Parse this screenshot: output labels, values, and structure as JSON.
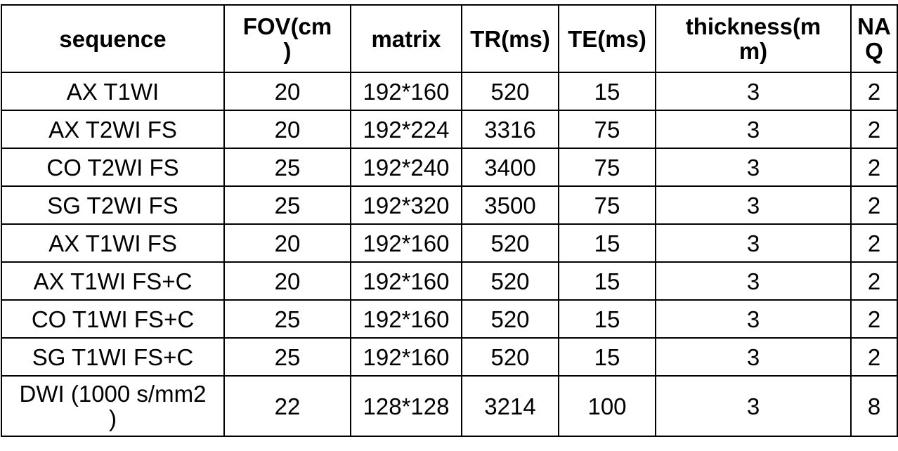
{
  "headers": [
    {
      "lines": [
        "sequence"
      ]
    },
    {
      "lines": [
        "FOV(cm",
        ")"
      ]
    },
    {
      "lines": [
        "matrix"
      ]
    },
    {
      "lines": [
        "TR(ms)"
      ]
    },
    {
      "lines": [
        "TE(ms)"
      ]
    },
    {
      "lines": [
        "thickness(m",
        "m)"
      ]
    },
    {
      "lines": [
        "NA",
        "Q"
      ]
    }
  ],
  "rows": [
    {
      "sequence": "AX T1WI",
      "fov": "20",
      "matrix": "192*160",
      "tr": "520",
      "te": "15",
      "thickness": "3",
      "naq": "2"
    },
    {
      "sequence": "AX T2WI FS",
      "fov": "20",
      "matrix": "192*224",
      "tr": "3316",
      "te": "75",
      "thickness": "3",
      "naq": "2"
    },
    {
      "sequence": "CO T2WI FS",
      "fov": "25",
      "matrix": "192*240",
      "tr": "3400",
      "te": "75",
      "thickness": "3",
      "naq": "2"
    },
    {
      "sequence": "SG T2WI FS",
      "fov": "25",
      "matrix": "192*320",
      "tr": "3500",
      "te": "75",
      "thickness": "3",
      "naq": "2"
    },
    {
      "sequence": "AX T1WI FS",
      "fov": "20",
      "matrix": "192*160",
      "tr": "520",
      "te": "15",
      "thickness": "3",
      "naq": "2"
    },
    {
      "sequence": "AX T1WI FS+C",
      "fov": "20",
      "matrix": "192*160",
      "tr": "520",
      "te": "15",
      "thickness": "3",
      "naq": "2"
    },
    {
      "sequence": "CO T1WI FS+C",
      "fov": "25",
      "matrix": "192*160",
      "tr": "520",
      "te": "15",
      "thickness": "3",
      "naq": "2"
    },
    {
      "sequence": "SG T1WI FS+C",
      "fov": "25",
      "matrix": "192*160",
      "tr": "520",
      "te": "15",
      "thickness": "3",
      "naq": "2"
    }
  ],
  "last_row": {
    "sequence_lines": [
      "DWI (1000 s/mm2",
      ")"
    ],
    "fov": "22",
    "matrix": "128*128",
    "tr": "3214",
    "te": "100",
    "thickness": "3",
    "naq": "8"
  }
}
